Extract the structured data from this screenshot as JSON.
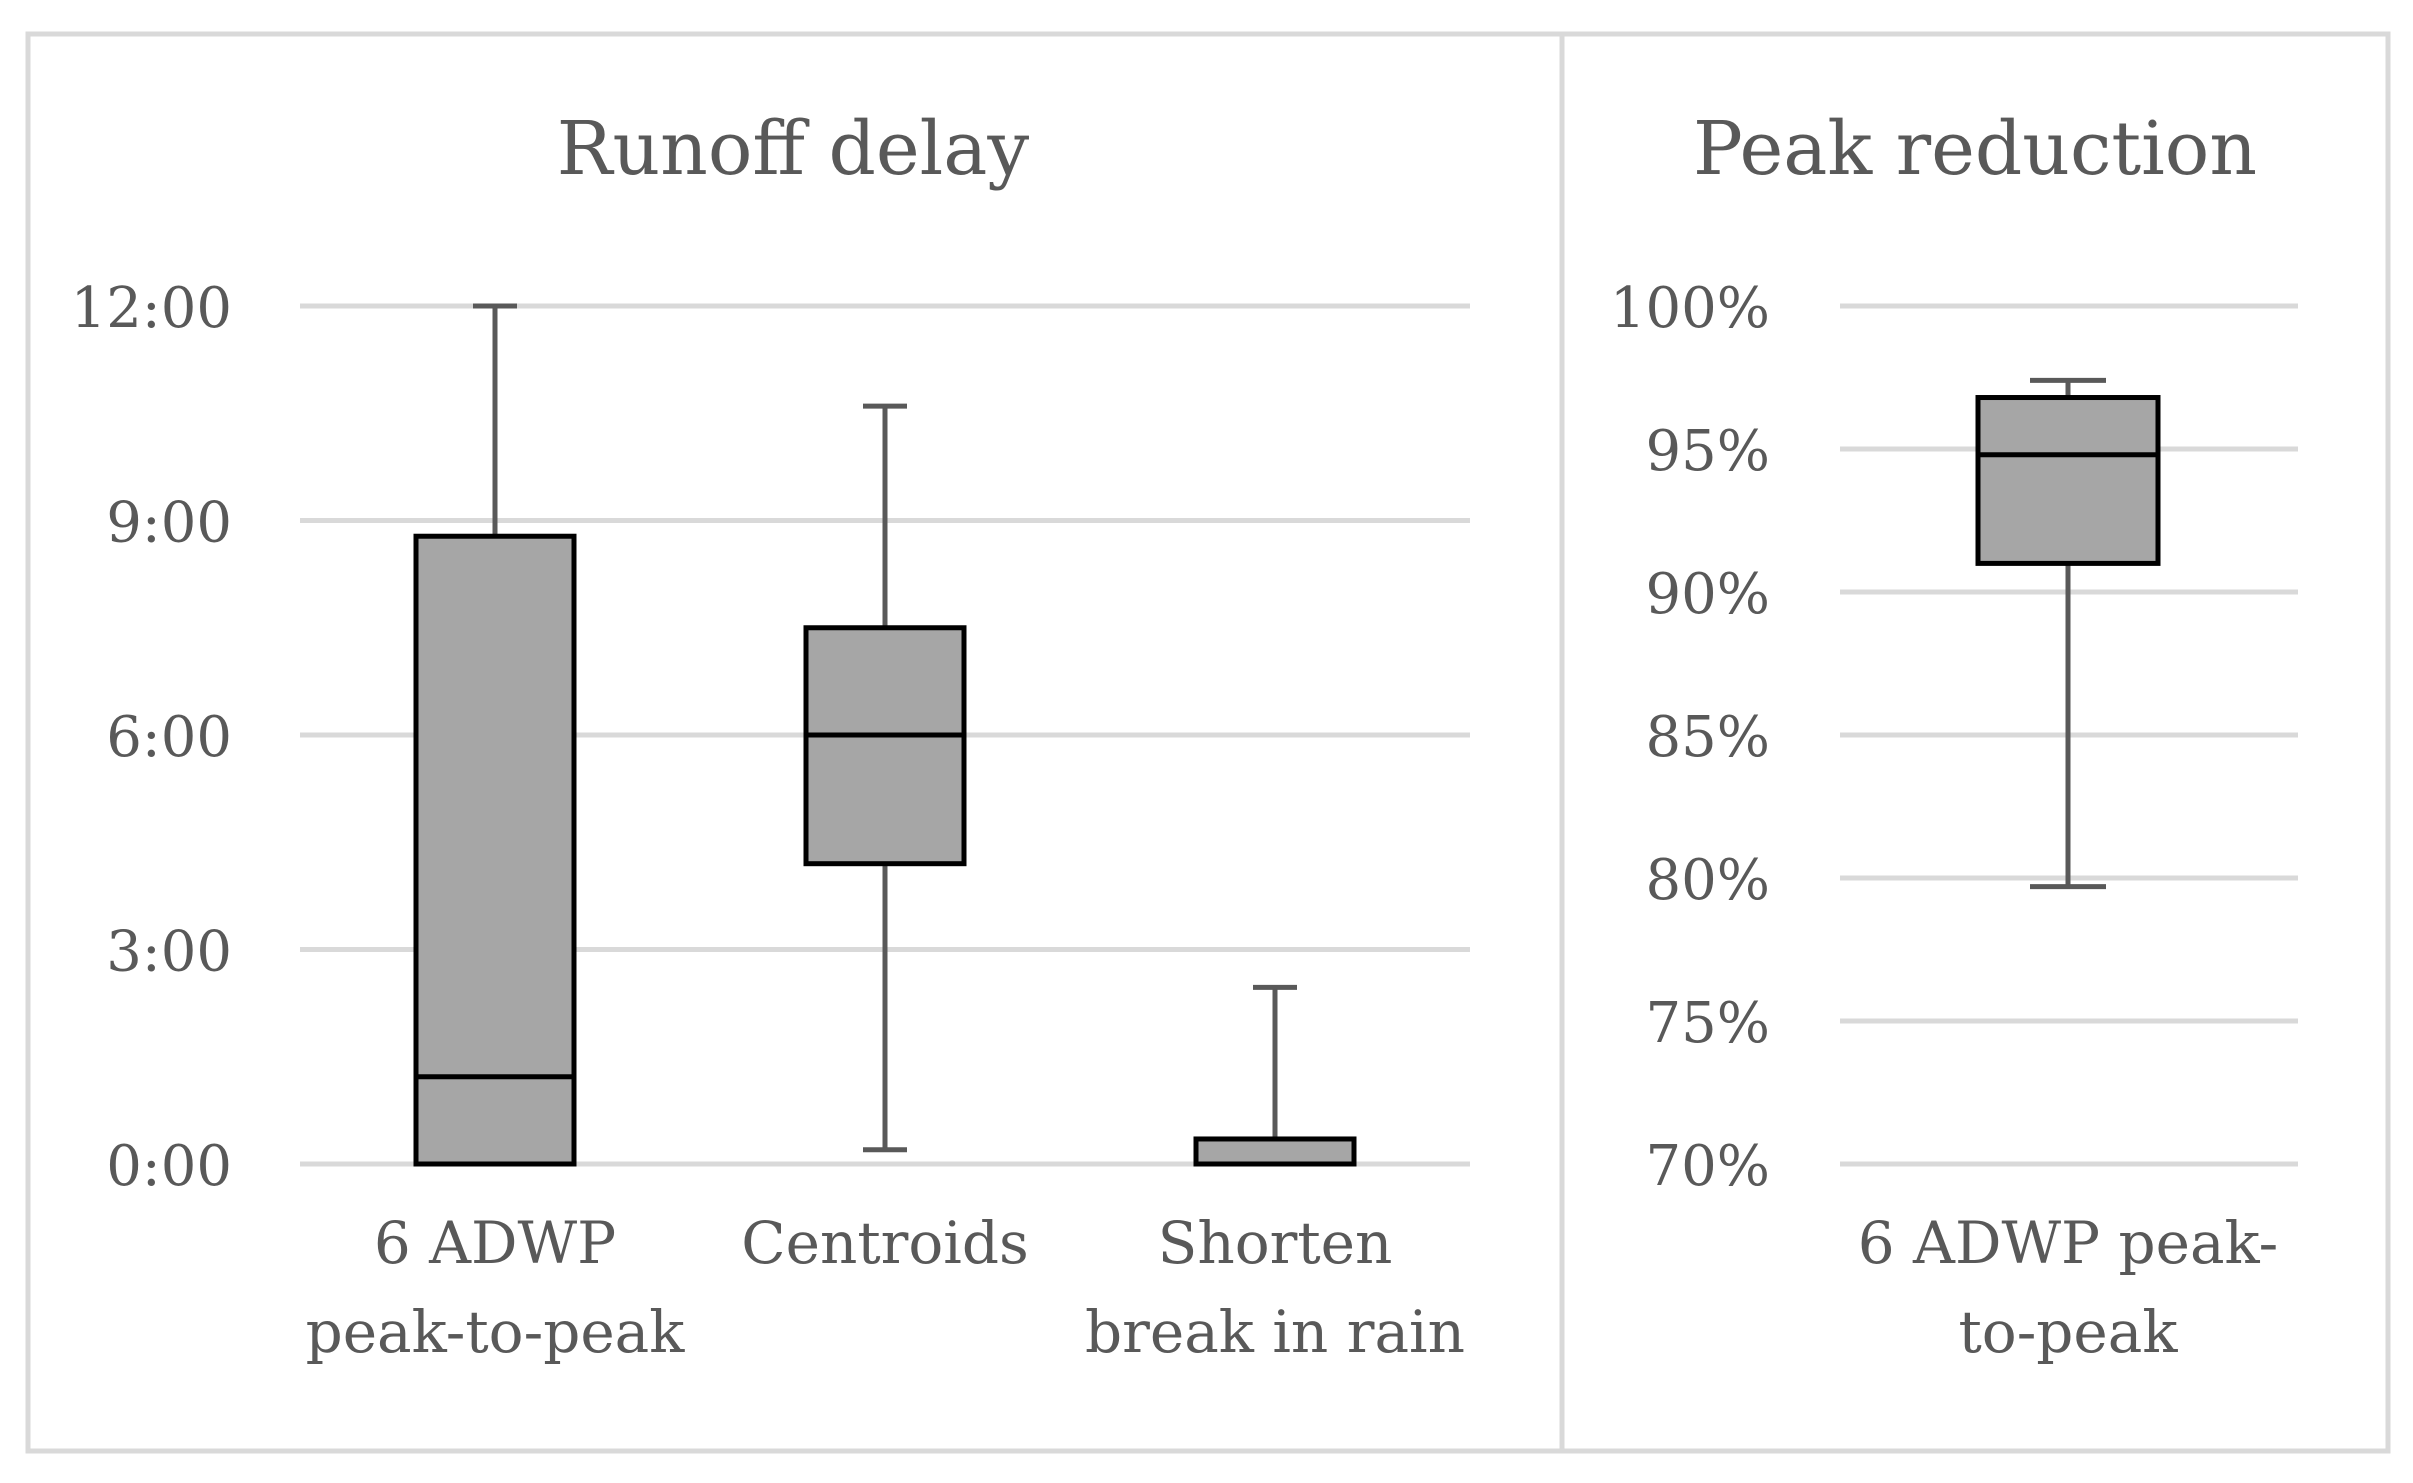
{
  "chart_data": [
    {
      "type": "box",
      "title": "Runoff delay",
      "xlabel": "",
      "ylabel": "",
      "y_unit": "hours (h:mm)",
      "ylim": [
        0,
        12
      ],
      "y_ticks": [
        {
          "value": 0,
          "label": "0:00"
        },
        {
          "value": 3,
          "label": "3:00"
        },
        {
          "value": 6,
          "label": "6:00"
        },
        {
          "value": 9,
          "label": "9:00"
        },
        {
          "value": 12,
          "label": "12:00"
        }
      ],
      "grid": true,
      "box_color": "#a6a6a6",
      "categories": [
        {
          "label_lines": [
            "6 ADWP",
            "peak-to-peak"
          ],
          "whisker_min": 0.0,
          "q1": 0.0,
          "median": 1.22,
          "q3": 8.78,
          "whisker_max": 12.0
        },
        {
          "label_lines": [
            "Centroids"
          ],
          "whisker_min": 0.2,
          "q1": 4.2,
          "median": 6.0,
          "q3": 7.5,
          "whisker_max": 10.6
        },
        {
          "label_lines": [
            "Shorten",
            "break in rain"
          ],
          "whisker_min": 0.0,
          "q1": 0.0,
          "median": 0.0,
          "q3": 0.35,
          "whisker_max": 2.47
        }
      ]
    },
    {
      "type": "box",
      "title": "Peak reduction",
      "xlabel": "",
      "ylabel": "",
      "y_unit": "percent",
      "ylim": [
        70,
        100
      ],
      "y_ticks": [
        {
          "value": 70,
          "label": "70%"
        },
        {
          "value": 75,
          "label": "75%"
        },
        {
          "value": 80,
          "label": "80%"
        },
        {
          "value": 85,
          "label": "85%"
        },
        {
          "value": 90,
          "label": "90%"
        },
        {
          "value": 95,
          "label": "95%"
        },
        {
          "value": 100,
          "label": "100%"
        }
      ],
      "grid": true,
      "box_color": "#a6a6a6",
      "categories": [
        {
          "label_lines": [
            "6 ADWP peak-",
            "to-peak"
          ],
          "whisker_min": 79.7,
          "q1": 91.0,
          "median": 94.8,
          "q3": 96.8,
          "whisker_max": 97.4
        }
      ]
    }
  ]
}
